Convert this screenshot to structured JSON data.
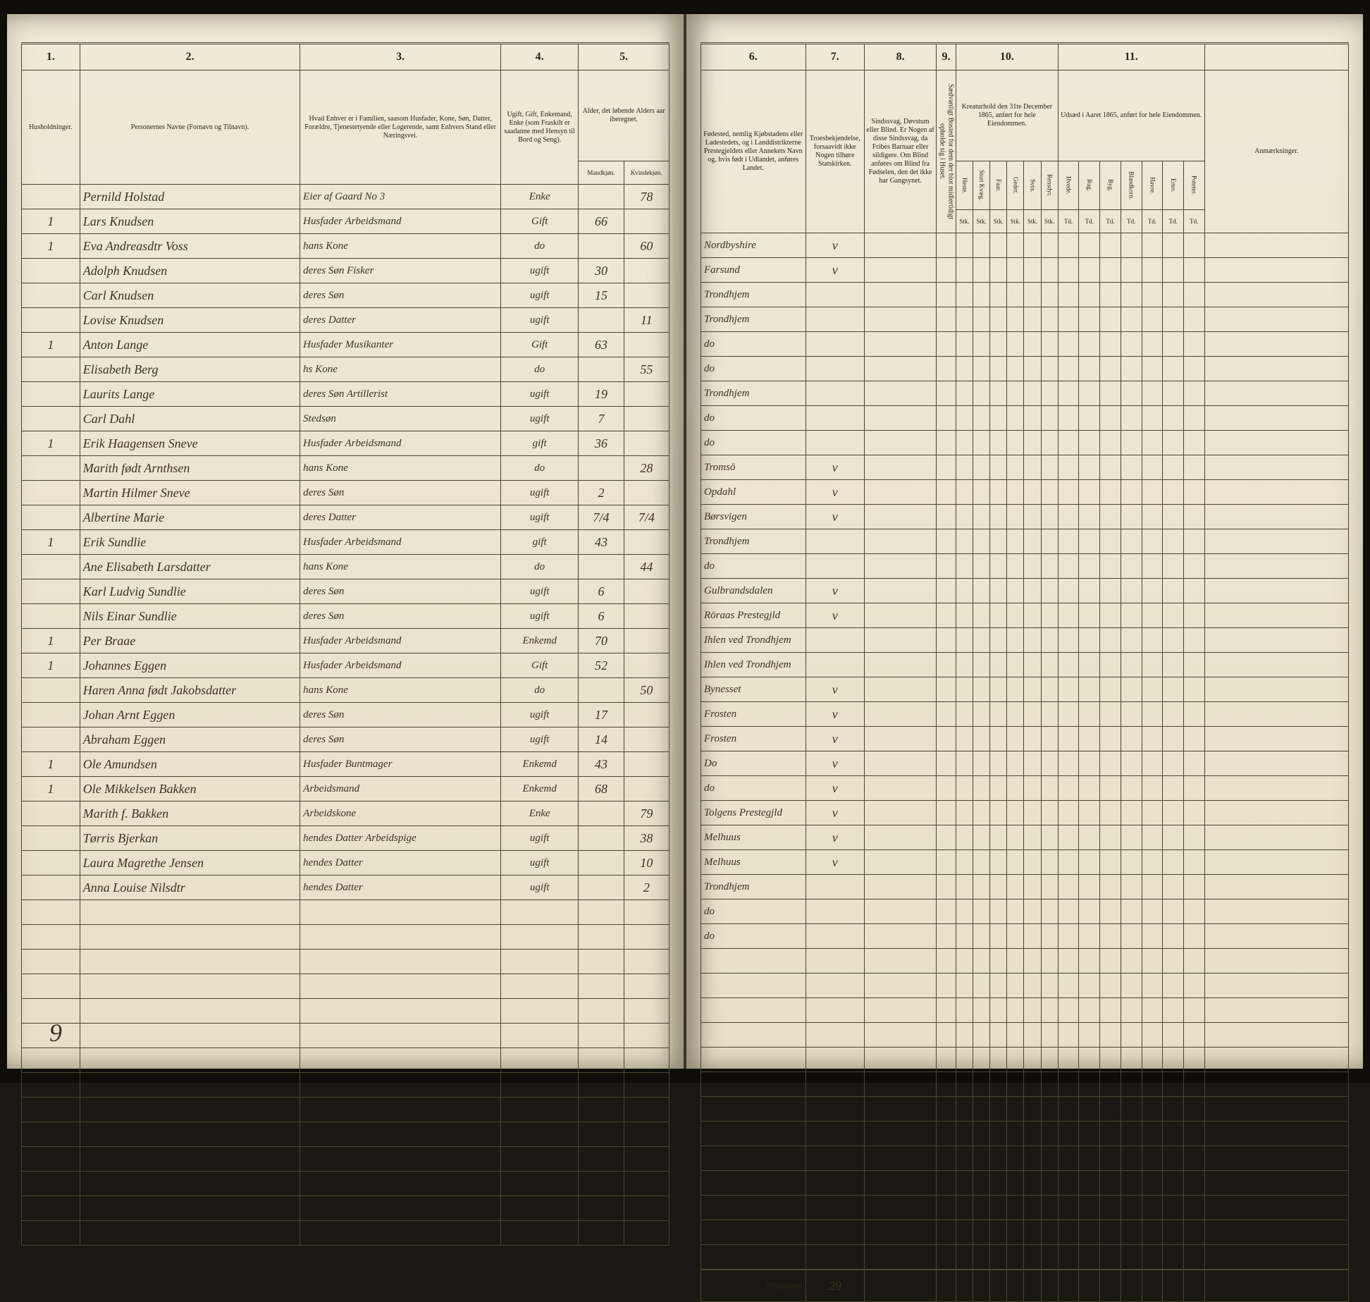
{
  "page_background": "#ebe4ce",
  "ink_color": "#3a3220",
  "rule_color": "#4a4430",
  "left": {
    "columns": [
      "1.",
      "2.",
      "3.",
      "4.",
      "5."
    ],
    "headers": {
      "c1": "Husholdninger.",
      "c2": "Personernes Navne (Fornavn og Tilnavn).",
      "c3": "Hvad Enhver er i Familien, saasom Husfader, Kone, Søn, Datter, Forældre, Tjenestetyende eller Logerende, samt Enhvers Stand eller Næringsvei.",
      "c4": "Ugift, Gift, Enkemand, Enke (som Fraskilt er saadanne med Hensyn til Bord og Seng).",
      "c5": "Alder, det løbende Alders aar iberegnet.",
      "c5a": "Mandkjøn.",
      "c5b": "Kvindekjøn."
    },
    "rows": [
      {
        "hh": "",
        "name": "Pernild Holstad",
        "rel": "Eier af Gaard No 3",
        "stat": "Enke",
        "m": "",
        "f": "78"
      },
      {
        "hh": "1",
        "name": "Lars Knudsen",
        "rel": "Husfader Arbeidsmand",
        "stat": "Gift",
        "m": "66",
        "f": ""
      },
      {
        "hh": "1",
        "name": "Eva Andreasdtr Voss",
        "rel": "hans Kone",
        "stat": "do",
        "m": "",
        "f": "60"
      },
      {
        "hh": "",
        "name": "Adolph Knudsen",
        "rel": "deres Søn  Fisker",
        "stat": "ugift",
        "m": "30",
        "f": ""
      },
      {
        "hh": "",
        "name": "Carl Knudsen",
        "rel": "deres Søn",
        "stat": "ugift",
        "m": "15",
        "f": ""
      },
      {
        "hh": "",
        "name": "Lovise Knudsen",
        "rel": "deres Datter",
        "stat": "ugift",
        "m": "",
        "f": "11"
      },
      {
        "hh": "1",
        "name": "Anton Lange",
        "rel": "Husfader Musikanter",
        "stat": "Gift",
        "m": "63",
        "f": ""
      },
      {
        "hh": "",
        "name": "Elisabeth Berg",
        "rel": "hs Kone",
        "stat": "do",
        "m": "",
        "f": "55"
      },
      {
        "hh": "",
        "name": "Laurits Lange",
        "rel": "deres Søn Artillerist",
        "stat": "ugift",
        "m": "19",
        "f": ""
      },
      {
        "hh": "",
        "name": "Carl Dahl",
        "rel": "Stedsøn",
        "stat": "ugift",
        "m": "7",
        "f": ""
      },
      {
        "hh": "1",
        "name": "Erik Haagensen Sneve",
        "rel": "Husfader Arbeidsmand",
        "stat": "gift",
        "m": "36",
        "f": ""
      },
      {
        "hh": "",
        "name": "Marith født Arnthsen",
        "rel": "hans Kone",
        "stat": "do",
        "m": "",
        "f": "28"
      },
      {
        "hh": "",
        "name": "Martin Hilmer Sneve",
        "rel": "deres Søn",
        "stat": "ugift",
        "m": "2",
        "f": ""
      },
      {
        "hh": "",
        "name": "Albertine Marie",
        "rel": "deres Datter",
        "stat": "ugift",
        "m": "7/4",
        "f": "7/4"
      },
      {
        "hh": "1",
        "name": "Erik Sundlie",
        "rel": "Husfader Arbeidsmand",
        "stat": "gift",
        "m": "43",
        "f": ""
      },
      {
        "hh": "",
        "name": "Ane Elisabeth Larsdatter",
        "rel": "hans Kone",
        "stat": "do",
        "m": "",
        "f": "44"
      },
      {
        "hh": "",
        "name": "Karl Ludvig Sundlie",
        "rel": "deres Søn",
        "stat": "ugift",
        "m": "6",
        "f": ""
      },
      {
        "hh": "",
        "name": "Nils Einar Sundlie",
        "rel": "deres Søn",
        "stat": "ugift",
        "m": "6",
        "f": ""
      },
      {
        "hh": "1",
        "name": "Per Braae",
        "rel": "Husfader Arbeidsmand",
        "stat": "Enkemd",
        "m": "70",
        "f": ""
      },
      {
        "hh": "1",
        "name": "Johannes Eggen",
        "rel": "Husfader Arbeidsmand",
        "stat": "Gift",
        "m": "52",
        "f": ""
      },
      {
        "hh": "",
        "name": "Haren Anna født Jakobsdatter",
        "rel": "hans Kone",
        "stat": "do",
        "m": "",
        "f": "50"
      },
      {
        "hh": "",
        "name": "Johan Arnt Eggen",
        "rel": "deres Søn",
        "stat": "ugift",
        "m": "17",
        "f": ""
      },
      {
        "hh": "",
        "name": "Abraham Eggen",
        "rel": "deres Søn",
        "stat": "ugift",
        "m": "14",
        "f": ""
      },
      {
        "hh": "1",
        "name": "Ole Amundsen",
        "rel": "Husfader Buntmager",
        "stat": "Enkemd",
        "m": "43",
        "f": ""
      },
      {
        "hh": "1",
        "name": "Ole Mikkelsen Bakken",
        "rel": "Arbeidsmand",
        "stat": "Enkemd",
        "m": "68",
        "f": ""
      },
      {
        "hh": "",
        "name": "Marith f. Bakken",
        "rel": "Arbeidskone",
        "stat": "Enke",
        "m": "",
        "f": "79"
      },
      {
        "hh": "",
        "name": "Tørris Bjerkan",
        "rel": "hendes Datter Arbeidspige",
        "stat": "ugift",
        "m": "",
        "f": "38"
      },
      {
        "hh": "",
        "name": "Laura Magrethe Jensen",
        "rel": "hendes Datter",
        "stat": "ugift",
        "m": "",
        "f": "10"
      },
      {
        "hh": "",
        "name": "Anna Louise Nilsdtr",
        "rel": "hendes Datter",
        "stat": "ugift",
        "m": "",
        "f": "2"
      }
    ],
    "bottom_number": "9"
  },
  "right": {
    "columns": [
      "6.",
      "7.",
      "8.",
      "9.",
      "10.",
      "11."
    ],
    "headers": {
      "c6": "Fødested, nemlig Kjøbstadens eller Ladestedets, og i Landdistrikterne Prestegjeldets eller Annekets Navn og, hvis født i Udlandet, anføres Landet.",
      "c7": "Troesbekjendelse, forsaavidt ikke Nogen tilhøre Statskirken.",
      "c8": "Sindssvag, Døvstum eller Blind. Er Nogen af disse Sindssvag, da Fribes Barnaar eller sildigere. Om Blind anføres om Blind fra Fødselen, den det ikke har Gangsynet.",
      "c9": "Sædvanligt Bosted for dem der blot midlertidigt opholde sig i Huset.",
      "c10": "Kreaturhold den 31te December 1865, anført for hele Eiendommen.",
      "c11": "Udsæd i Aaret 1865, anført for hele Eiendommen.",
      "ann": "Anmærkninger.",
      "c10_sub": [
        "Heste.",
        "Stort Kvæg.",
        "Faar.",
        "Geder.",
        "Svin.",
        "Rensdyr."
      ],
      "c11_sub": [
        "Hvede.",
        "Rug.",
        "Byg.",
        "Blandkorn.",
        "Havre.",
        "Erter.",
        "Poteter."
      ],
      "c10_unit": "Stk.",
      "c11_unit": "Td."
    },
    "rows": [
      {
        "birthplace": "Nordbyshire",
        "mark": "v"
      },
      {
        "birthplace": "Farsund",
        "mark": "v"
      },
      {
        "birthplace": "Trondhjem",
        "mark": ""
      },
      {
        "birthplace": "Trondhjem",
        "mark": ""
      },
      {
        "birthplace": "do",
        "mark": ""
      },
      {
        "birthplace": "do",
        "mark": ""
      },
      {
        "birthplace": "Trondhjem",
        "mark": ""
      },
      {
        "birthplace": "do",
        "mark": ""
      },
      {
        "birthplace": "do",
        "mark": ""
      },
      {
        "birthplace": "Tromsö",
        "mark": "v"
      },
      {
        "birthplace": "Opdahl",
        "mark": "v"
      },
      {
        "birthplace": "Børsvigen",
        "mark": "v"
      },
      {
        "birthplace": "Trondhjem",
        "mark": ""
      },
      {
        "birthplace": "do",
        "mark": ""
      },
      {
        "birthplace": "Gulbrandsdalen",
        "mark": "v"
      },
      {
        "birthplace": "Röraas Prestegjld",
        "mark": "v"
      },
      {
        "birthplace": "Ihlen ved Trondhjem",
        "mark": ""
      },
      {
        "birthplace": "Ihlen ved Trondhjem",
        "mark": ""
      },
      {
        "birthplace": "Bynesset",
        "mark": "v"
      },
      {
        "birthplace": "Frosten",
        "mark": "v"
      },
      {
        "birthplace": "Frosten",
        "mark": "v"
      },
      {
        "birthplace": "Do",
        "mark": "v"
      },
      {
        "birthplace": "do",
        "mark": "v"
      },
      {
        "birthplace": "Tolgens Prestegjld",
        "mark": "v"
      },
      {
        "birthplace": "Melhuus",
        "mark": "v"
      },
      {
        "birthplace": "Melhuus",
        "mark": "v"
      },
      {
        "birthplace": "Trondhjem",
        "mark": ""
      },
      {
        "birthplace": "do",
        "mark": ""
      },
      {
        "birthplace": "do",
        "mark": ""
      }
    ],
    "tilsammen_label": "Tilsammen",
    "tilsammen_value": "29"
  }
}
